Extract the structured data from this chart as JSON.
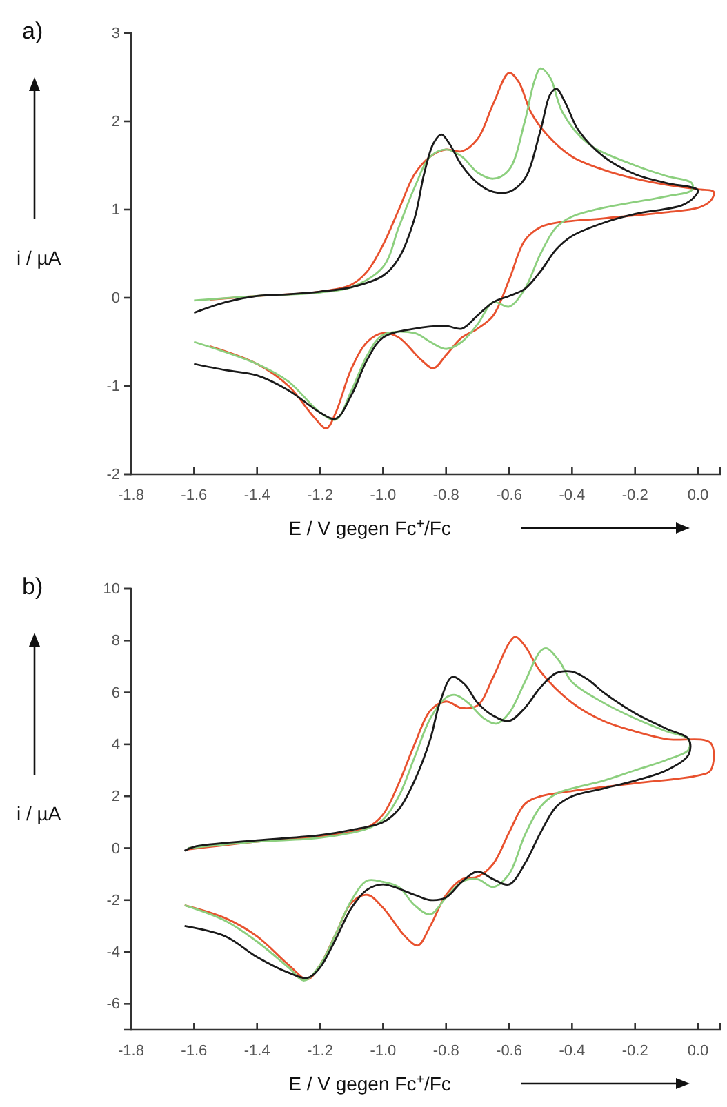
{
  "chart_data": [
    {
      "type": "line",
      "title": "a)",
      "xlabel": "E / V gegen Fc$^{+}$/Fc",
      "ylabel": "i / µA",
      "xlim": [
        -1.8,
        0.07
      ],
      "ylim": [
        -2,
        3
      ],
      "xticks": [
        {
          "value": -1.8,
          "label": "-1.8"
        },
        {
          "value": -1.6,
          "label": "-1.6"
        },
        {
          "value": -1.4,
          "label": "-1.4"
        },
        {
          "value": -1.2,
          "label": "-1.2"
        },
        {
          "value": -1.0,
          "label": "-1.0"
        },
        {
          "value": -0.8,
          "label": "-0.8"
        },
        {
          "value": -0.6,
          "label": "-0.6"
        },
        {
          "value": -0.4,
          "label": "-0.4"
        },
        {
          "value": -0.2,
          "label": "-0.2"
        },
        {
          "value": 0,
          "label": "0.0"
        }
      ],
      "yticks": [
        -2,
        -1,
        0,
        1,
        2,
        3
      ],
      "series": [
        {
          "color": "#e8512e",
          "x": [
            -1.55,
            -1.4,
            -1.2,
            -1.1,
            -1.05,
            -1.0,
            -0.95,
            -0.9,
            -0.85,
            -0.8,
            -0.75,
            -0.7,
            -0.65,
            -0.6,
            -0.57,
            -0.53,
            -0.48,
            -0.4,
            -0.3,
            -0.2,
            -0.1,
            0,
            0.05,
            0.04,
            0.0,
            -0.1,
            -0.3,
            -0.45,
            -0.5,
            -0.55,
            -0.6,
            -0.65,
            -0.7,
            -0.75,
            -0.8,
            -0.84,
            -0.88,
            -0.95,
            -1.0,
            -1.05,
            -1.1,
            -1.15,
            -1.18,
            -1.22,
            -1.3,
            -1.4,
            -1.55
          ],
          "values": [
            -0.02,
            0.02,
            0.07,
            0.15,
            0.3,
            0.6,
            1.0,
            1.4,
            1.6,
            1.68,
            1.66,
            1.8,
            2.2,
            2.55,
            2.45,
            2.1,
            1.85,
            1.6,
            1.45,
            1.35,
            1.28,
            1.23,
            1.2,
            1.1,
            1.02,
            0.97,
            0.9,
            0.85,
            0.8,
            0.65,
            0.2,
            -0.2,
            -0.35,
            -0.45,
            -0.65,
            -0.8,
            -0.7,
            -0.45,
            -0.4,
            -0.5,
            -0.8,
            -1.3,
            -1.48,
            -1.35,
            -1.0,
            -0.75,
            -0.55
          ]
        },
        {
          "color": "#8ccf7e",
          "x": [
            -1.6,
            -1.4,
            -1.2,
            -1.1,
            -1.0,
            -0.95,
            -0.9,
            -0.85,
            -0.8,
            -0.75,
            -0.7,
            -0.65,
            -0.6,
            -0.55,
            -0.52,
            -0.5,
            -0.47,
            -0.43,
            -0.35,
            -0.2,
            -0.1,
            -0.02,
            -0.02,
            -0.1,
            -0.3,
            -0.4,
            -0.45,
            -0.5,
            -0.55,
            -0.6,
            -0.65,
            -0.7,
            -0.75,
            -0.8,
            -0.85,
            -0.9,
            -1.0,
            -1.05,
            -1.1,
            -1.15,
            -1.2,
            -1.3,
            -1.4,
            -1.6
          ],
          "values": [
            -0.03,
            0.02,
            0.06,
            0.12,
            0.35,
            0.8,
            1.25,
            1.6,
            1.68,
            1.6,
            1.42,
            1.35,
            1.45,
            2.0,
            2.45,
            2.6,
            2.5,
            2.1,
            1.75,
            1.5,
            1.38,
            1.3,
            1.22,
            1.15,
            1.02,
            0.92,
            0.8,
            0.5,
            0.1,
            -0.1,
            -0.05,
            -0.3,
            -0.5,
            -0.58,
            -0.5,
            -0.4,
            -0.42,
            -0.65,
            -1.05,
            -1.38,
            -1.3,
            -0.95,
            -0.75,
            -0.5
          ]
        },
        {
          "color": "#1a1a1a",
          "x": [
            -1.6,
            -1.5,
            -1.4,
            -1.3,
            -1.2,
            -1.1,
            -1.0,
            -0.95,
            -0.9,
            -0.87,
            -0.84,
            -0.815,
            -0.79,
            -0.75,
            -0.7,
            -0.65,
            -0.6,
            -0.55,
            -0.5,
            -0.47,
            -0.45,
            -0.42,
            -0.38,
            -0.3,
            -0.2,
            -0.1,
            0,
            -0.01,
            -0.05,
            -0.2,
            -0.3,
            -0.4,
            -0.45,
            -0.5,
            -0.55,
            -0.6,
            -0.65,
            -0.7,
            -0.75,
            -0.8,
            -0.9,
            -1.0,
            -1.05,
            -1.1,
            -1.15,
            -1.2,
            -1.3,
            -1.4,
            -1.5,
            -1.6
          ],
          "values": [
            -0.17,
            -0.05,
            0.02,
            0.04,
            0.07,
            0.12,
            0.25,
            0.45,
            0.9,
            1.4,
            1.75,
            1.85,
            1.75,
            1.5,
            1.3,
            1.2,
            1.2,
            1.35,
            1.9,
            2.3,
            2.37,
            2.2,
            1.9,
            1.6,
            1.4,
            1.3,
            1.22,
            1.15,
            1.05,
            0.95,
            0.85,
            0.7,
            0.55,
            0.3,
            0.1,
            0.02,
            -0.05,
            -0.2,
            -0.35,
            -0.32,
            -0.35,
            -0.45,
            -0.7,
            -1.1,
            -1.37,
            -1.3,
            -1.05,
            -0.88,
            -0.82,
            -0.75
          ]
        }
      ]
    },
    {
      "type": "line",
      "title": "b)",
      "xlabel": "E / V gegen Fc$^{+}$/Fc",
      "ylabel": "i / µA",
      "xlim": [
        -1.8,
        0.07
      ],
      "ylim": [
        -7,
        10
      ],
      "xticks": [
        {
          "value": -1.8,
          "label": "-1.8"
        },
        {
          "value": -1.6,
          "label": "-1.6"
        },
        {
          "value": -1.4,
          "label": "-1.4"
        },
        {
          "value": -1.2,
          "label": "-1.2"
        },
        {
          "value": -1.0,
          "label": "-1.0"
        },
        {
          "value": -0.8,
          "label": "-0.8"
        },
        {
          "value": -0.6,
          "label": "-0.6"
        },
        {
          "value": -0.4,
          "label": "-0.4"
        },
        {
          "value": -0.2,
          "label": "-0.2"
        },
        {
          "value": 0,
          "label": "0.0"
        }
      ],
      "yticks": [
        -6,
        -4,
        -2,
        0,
        2,
        4,
        6,
        8,
        10
      ],
      "series": [
        {
          "color": "#e8512e",
          "x": [
            -1.62,
            -1.4,
            -1.2,
            -1.05,
            -1.0,
            -0.95,
            -0.9,
            -0.85,
            -0.8,
            -0.75,
            -0.7,
            -0.65,
            -0.6,
            -0.58,
            -0.55,
            -0.5,
            -0.4,
            -0.3,
            -0.2,
            -0.1,
            0.04,
            0.04,
            0.0,
            -0.2,
            -0.4,
            -0.5,
            -0.55,
            -0.6,
            -0.65,
            -0.7,
            -0.75,
            -0.8,
            -0.85,
            -0.89,
            -0.93,
            -1.0,
            -1.05,
            -1.1,
            -1.15,
            -1.2,
            -1.24,
            -1.3,
            -1.4,
            -1.5,
            -1.63
          ],
          "values": [
            -0.05,
            0.25,
            0.45,
            0.8,
            1.3,
            2.5,
            4.0,
            5.3,
            5.65,
            5.4,
            5.5,
            6.6,
            7.9,
            8.15,
            7.8,
            6.8,
            5.6,
            4.9,
            4.5,
            4.2,
            4.05,
            3.0,
            2.8,
            2.5,
            2.2,
            2.0,
            1.7,
            0.6,
            -0.6,
            -1.1,
            -1.2,
            -1.8,
            -3.0,
            -3.75,
            -3.4,
            -2.3,
            -1.8,
            -2.1,
            -3.3,
            -4.5,
            -5.05,
            -4.5,
            -3.4,
            -2.7,
            -2.2
          ]
        },
        {
          "color": "#8ccf7e",
          "x": [
            -1.62,
            -1.4,
            -1.2,
            -1.05,
            -1.0,
            -0.95,
            -0.9,
            -0.85,
            -0.8,
            -0.77,
            -0.73,
            -0.68,
            -0.64,
            -0.6,
            -0.55,
            -0.5,
            -0.48,
            -0.44,
            -0.4,
            -0.3,
            -0.2,
            -0.1,
            -0.03,
            -0.03,
            -0.1,
            -0.2,
            -0.3,
            -0.4,
            -0.45,
            -0.5,
            -0.55,
            -0.6,
            -0.65,
            -0.7,
            -0.75,
            -0.8,
            -0.85,
            -0.9,
            -0.95,
            -1.0,
            -1.05,
            -1.1,
            -1.15,
            -1.2,
            -1.25,
            -1.3,
            -1.4,
            -1.5,
            -1.63
          ],
          "values": [
            0,
            0.25,
            0.4,
            0.75,
            1.1,
            2.0,
            3.5,
            5.0,
            5.8,
            5.9,
            5.6,
            5.0,
            4.8,
            5.2,
            6.4,
            7.6,
            7.7,
            7.2,
            6.4,
            5.6,
            5.0,
            4.5,
            4.2,
            3.8,
            3.4,
            3.0,
            2.6,
            2.3,
            2.1,
            1.6,
            0.5,
            -1.0,
            -1.5,
            -1.2,
            -1.3,
            -1.9,
            -2.55,
            -2.2,
            -1.5,
            -1.3,
            -1.25,
            -2.0,
            -3.3,
            -4.5,
            -5.1,
            -4.6,
            -3.6,
            -2.8,
            -2.2
          ]
        },
        {
          "color": "#1a1a1a",
          "x": [
            -1.63,
            -1.6,
            -1.4,
            -1.2,
            -1.1,
            -1.0,
            -0.95,
            -0.9,
            -0.85,
            -0.82,
            -0.78,
            -0.74,
            -0.7,
            -0.65,
            -0.6,
            -0.55,
            -0.5,
            -0.45,
            -0.4,
            -0.35,
            -0.3,
            -0.2,
            -0.1,
            -0.03,
            -0.03,
            -0.1,
            -0.2,
            -0.3,
            -0.4,
            -0.45,
            -0.5,
            -0.55,
            -0.6,
            -0.65,
            -0.7,
            -0.75,
            -0.8,
            -0.85,
            -0.9,
            -1.0,
            -1.05,
            -1.1,
            -1.15,
            -1.2,
            -1.24,
            -1.3,
            -1.4,
            -1.5,
            -1.63
          ],
          "values": [
            -0.1,
            0.05,
            0.3,
            0.5,
            0.7,
            1.0,
            1.5,
            2.6,
            4.2,
            5.6,
            6.6,
            6.3,
            5.6,
            5.1,
            4.9,
            5.4,
            6.2,
            6.75,
            6.8,
            6.5,
            6.0,
            5.2,
            4.6,
            4.2,
            3.6,
            3.0,
            2.6,
            2.3,
            2.0,
            1.6,
            0.6,
            -0.6,
            -1.4,
            -1.2,
            -0.9,
            -1.3,
            -1.9,
            -2.0,
            -1.8,
            -1.4,
            -1.6,
            -2.3,
            -3.5,
            -4.6,
            -5.0,
            -4.8,
            -4.2,
            -3.4,
            -3.0
          ]
        }
      ]
    }
  ]
}
